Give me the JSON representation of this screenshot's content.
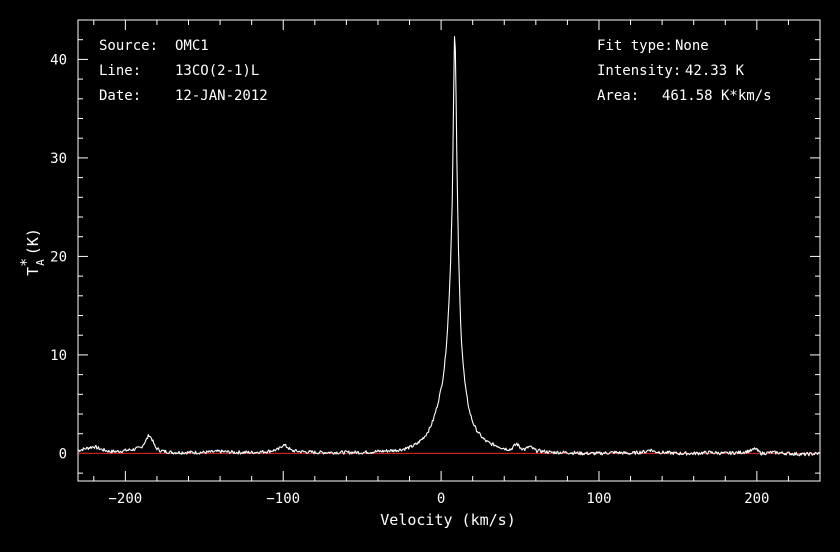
{
  "info_left": {
    "source_key": "Source:",
    "source_val": "OMC1",
    "line_key": "Line:",
    "line_val": "13CO(2-1)L",
    "date_key": "Date:",
    "date_val": "12-JAN-2012"
  },
  "info_right": {
    "fit_key": "Fit type:",
    "fit_val": "None",
    "intensity_key": "Intensity:",
    "intensity_val": "42.33 K",
    "area_key": "Area:",
    "area_val": "461.58 K*km/s"
  },
  "colors": {
    "background": "#000000",
    "axes": "#ffffff",
    "spectrum": "#ffffff",
    "baseline": "#d02020"
  },
  "chart_data": {
    "type": "line",
    "xlabel": "Velocity (km/s)",
    "ylabel": "T*A (K)",
    "ylabel_main": "T",
    "ylabel_sup": "*",
    "ylabel_sub": "A",
    "ylabel_unit": "(K)",
    "xlim": [
      -230,
      240
    ],
    "ylim": [
      -2.8,
      44
    ],
    "x_ticks": [
      -200,
      -100,
      0,
      100,
      200
    ],
    "x_tick_labels": [
      "−200",
      "−100",
      "0",
      "100",
      "200"
    ],
    "y_ticks": [
      0,
      10,
      20,
      30,
      40
    ],
    "y_tick_labels": [
      "0",
      "10",
      "20",
      "30",
      "40"
    ],
    "baseline_y": 0,
    "series": [
      {
        "x": [
          -230,
          -225,
          -220,
          -215,
          -210,
          -205,
          -200,
          -195,
          -190,
          -187,
          -185,
          -183,
          -181,
          -178,
          -175,
          -170,
          -160,
          -150,
          -140,
          -130,
          -120,
          -110,
          -103,
          -100,
          -97,
          -95,
          -90,
          -80,
          -70,
          -60,
          -50,
          -40,
          -30,
          -25,
          -20,
          -15,
          -10,
          -7,
          -5,
          -3,
          -1,
          0,
          1,
          2,
          3,
          4,
          5,
          6,
          7,
          7.5,
          8,
          8.5,
          9,
          9.5,
          10,
          11,
          12,
          13,
          14,
          15,
          16,
          18,
          20,
          22,
          25,
          28,
          31,
          35,
          40,
          44,
          46,
          48,
          50,
          53,
          56,
          58,
          60,
          65,
          70,
          80,
          90,
          100,
          110,
          120,
          130,
          132,
          135,
          140,
          150,
          160,
          170,
          180,
          190,
          197,
          199,
          201,
          203,
          210,
          220,
          230,
          240
        ],
        "y": [
          0.3,
          0.5,
          0.7,
          0.4,
          0.2,
          0.2,
          0.3,
          0.4,
          0.6,
          1.3,
          1.9,
          1.4,
          0.6,
          0.3,
          0.2,
          0.1,
          0.1,
          0.1,
          0.2,
          0.1,
          0.1,
          0.2,
          0.4,
          0.9,
          0.6,
          0.3,
          0.2,
          0.1,
          0.1,
          0.1,
          0.1,
          0.2,
          0.3,
          0.4,
          0.6,
          1.0,
          1.8,
          2.6,
          3.4,
          4.5,
          5.8,
          6.6,
          7.5,
          8.7,
          10.3,
          12.5,
          15.4,
          19.5,
          25.5,
          30.5,
          37.0,
          42.3,
          41.0,
          36.0,
          29.5,
          20.5,
          14.8,
          11.3,
          9.0,
          7.3,
          6.0,
          4.3,
          3.2,
          2.5,
          1.8,
          1.3,
          1.0,
          0.8,
          0.5,
          0.4,
          0.7,
          1.0,
          0.6,
          0.4,
          0.7,
          0.5,
          0.3,
          0.2,
          0.1,
          0.1,
          0.0,
          0.0,
          0.1,
          0.0,
          0.2,
          0.4,
          0.2,
          0.1,
          0.0,
          0.0,
          0.1,
          0.0,
          0.1,
          0.3,
          0.5,
          0.2,
          0.0,
          0.1,
          0.0,
          -0.1,
          0.0
        ]
      }
    ]
  }
}
